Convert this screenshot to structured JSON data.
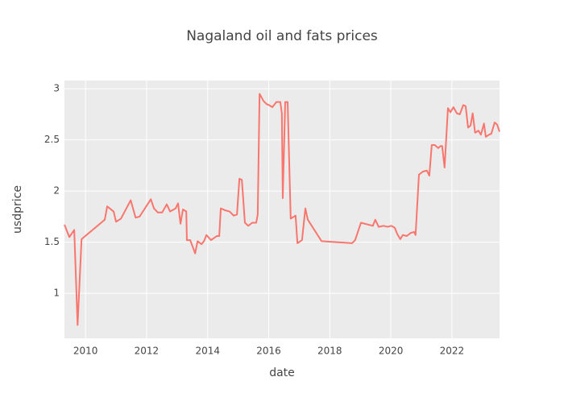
{
  "chart_data": {
    "type": "line",
    "title": "Nagaland oil and fats prices",
    "x_label": "date",
    "y_label": "usdprice",
    "x": [
      2009.31,
      2009.47,
      2009.63,
      2009.74,
      2009.87,
      2010.63,
      2010.71,
      2010.92,
      2011.0,
      2011.16,
      2011.48,
      2011.64,
      2011.77,
      2012.14,
      2012.24,
      2012.37,
      2012.51,
      2012.66,
      2012.77,
      2012.95,
      2013.03,
      2013.11,
      2013.19,
      2013.3,
      2013.32,
      2013.43,
      2013.59,
      2013.67,
      2013.8,
      2013.88,
      2013.96,
      2014.11,
      2014.3,
      2014.38,
      2014.43,
      2014.59,
      2014.72,
      2014.85,
      2014.96,
      2015.04,
      2015.12,
      2015.22,
      2015.33,
      2015.46,
      2015.59,
      2015.64,
      2015.7,
      2015.83,
      2015.93,
      2016.01,
      2016.12,
      2016.25,
      2016.38,
      2016.43,
      2016.46,
      2016.54,
      2016.62,
      2016.72,
      2016.88,
      2016.94,
      2017.09,
      2017.2,
      2017.28,
      2017.73,
      2018.73,
      2018.83,
      2019.02,
      2019.41,
      2019.49,
      2019.6,
      2019.76,
      2019.89,
      2020.02,
      2020.13,
      2020.21,
      2020.31,
      2020.39,
      2020.52,
      2020.65,
      2020.76,
      2020.81,
      2020.92,
      2021.05,
      2021.18,
      2021.26,
      2021.34,
      2021.44,
      2021.55,
      2021.63,
      2021.68,
      2021.76,
      2021.87,
      2021.95,
      2022.05,
      2022.16,
      2022.26,
      2022.37,
      2022.45,
      2022.53,
      2022.61,
      2022.68,
      2022.76,
      2022.87,
      2022.95,
      2023.05,
      2023.11,
      2023.21,
      2023.29,
      2023.4,
      2023.48,
      2023.56
    ],
    "values": [
      1.67,
      1.55,
      1.62,
      0.69,
      1.53,
      1.72,
      1.85,
      1.8,
      1.7,
      1.73,
      1.91,
      1.74,
      1.75,
      1.92,
      1.83,
      1.79,
      1.79,
      1.87,
      1.8,
      1.83,
      1.88,
      1.68,
      1.82,
      1.8,
      1.52,
      1.52,
      1.39,
      1.51,
      1.48,
      1.51,
      1.57,
      1.52,
      1.56,
      1.56,
      1.83,
      1.81,
      1.8,
      1.76,
      1.77,
      2.12,
      2.11,
      1.69,
      1.66,
      1.69,
      1.69,
      1.77,
      2.95,
      2.88,
      2.85,
      2.84,
      2.82,
      2.87,
      2.87,
      2.76,
      1.93,
      2.87,
      2.87,
      1.73,
      1.76,
      1.49,
      1.52,
      1.83,
      1.72,
      1.51,
      1.49,
      1.52,
      1.69,
      1.66,
      1.72,
      1.65,
      1.66,
      1.65,
      1.66,
      1.64,
      1.58,
      1.53,
      1.57,
      1.56,
      1.59,
      1.6,
      1.57,
      2.16,
      2.19,
      2.2,
      2.15,
      2.45,
      2.45,
      2.42,
      2.44,
      2.44,
      2.23,
      2.81,
      2.77,
      2.82,
      2.76,
      2.75,
      2.84,
      2.83,
      2.62,
      2.64,
      2.76,
      2.57,
      2.59,
      2.55,
      2.66,
      2.53,
      2.55,
      2.56,
      2.67,
      2.65,
      2.58
    ],
    "color": "#F8766D",
    "xlim": [
      2009.31,
      2023.56
    ],
    "xticks": [
      2010,
      2012,
      2014,
      2016,
      2018,
      2020,
      2022
    ],
    "ylim": [
      0.56,
      3.08
    ],
    "yticks": [
      1,
      1.5,
      2,
      2.5,
      3
    ],
    "grid": true
  }
}
